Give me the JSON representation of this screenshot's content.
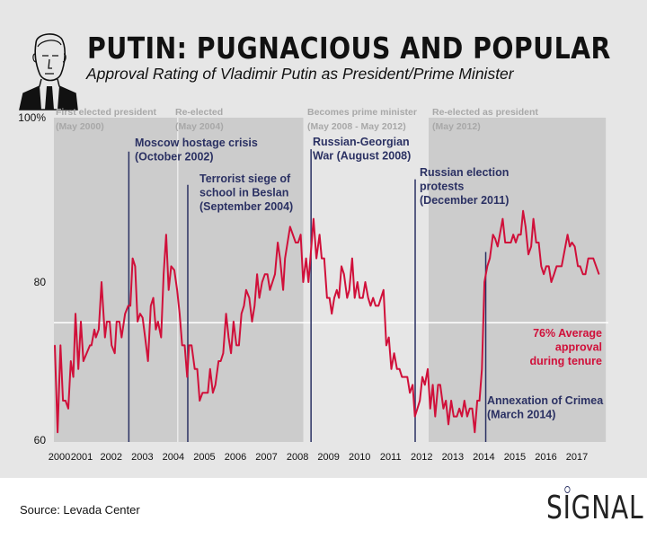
{
  "header": {
    "title": "PUTIN: PUGNACIOUS AND POPULAR",
    "subtitle": "Approval Rating of Vladimir Putin as President/Prime Minister",
    "portrait_icon": "putin-portrait-sketch"
  },
  "footer": {
    "source": "Source: Levada Center",
    "logo": "SIGNAL"
  },
  "colors": {
    "background": "#e6e6e6",
    "shaded_period": "#cccccc",
    "line": "#d0103a",
    "event": "#2b3163",
    "period_label": "#a8a8a8",
    "average_line": "#ffffff"
  },
  "chart_data": {
    "type": "line",
    "title": "PUTIN: PUGNACIOUS AND POPULAR",
    "subtitle": "Approval Rating of Vladimir Putin as President/Prime Minister",
    "xlabel": "",
    "ylabel": "",
    "xlim": [
      2000,
      2018
    ],
    "ylim": [
      60,
      100
    ],
    "yticks": [
      {
        "value": 100,
        "label": "100%"
      },
      {
        "value": 80,
        "label": "80"
      },
      {
        "value": 60,
        "label": "60"
      }
    ],
    "xticks": [
      "2000",
      "2001",
      "2002",
      "2003",
      "2004",
      "2005",
      "2006",
      "2007",
      "2008",
      "2009",
      "2010",
      "2011",
      "2012",
      "2013",
      "2014",
      "2015",
      "2016",
      "2017"
    ],
    "grid": false,
    "average": {
      "value": 76,
      "label_lines": [
        "76% Average",
        "approval",
        "during tenure"
      ]
    },
    "periods": [
      {
        "label": "First elected president",
        "date": "(May 2000)",
        "start": 2000.33,
        "end": 2008.35,
        "shaded": true
      },
      {
        "label": "Re-elected",
        "date": "(May 2004)",
        "start": 2004.35,
        "end": 2008.35,
        "shaded": true
      },
      {
        "label": "Becomes prime minister",
        "date": "(May 2008 - May 2012)",
        "start": 2008.35,
        "end": 2012.35,
        "shaded": false
      },
      {
        "label": "Re-elected as president",
        "date": "(May 2012)",
        "start": 2012.35,
        "end": 2018.0,
        "shaded": true
      }
    ],
    "events": [
      {
        "lines": [
          "Moscow hostage crisis",
          "(October 2002)"
        ],
        "x": 2002.79,
        "top_value": 96.5
      },
      {
        "lines": [
          "Terrorist siege of",
          "school in Beslan",
          "(September 2004)"
        ],
        "x": 2004.67,
        "top_value": 92.3
      },
      {
        "lines": [
          "Russian-Georgian",
          "War (August 2008)"
        ],
        "x": 2008.6,
        "top_value": 96.8
      },
      {
        "lines": [
          "Russian election",
          "protests",
          "(December 2011)"
        ],
        "x": 2011.92,
        "top_value": 93
      },
      {
        "lines": [
          "Annexation of Crimea",
          "(March 2014)"
        ],
        "x": 2014.17,
        "top_value": 83.8
      }
    ],
    "series": [
      {
        "points": [
          [
            2000.43,
            72
          ],
          [
            2000.52,
            61
          ],
          [
            2000.61,
            72
          ],
          [
            2000.69,
            65
          ],
          [
            2000.77,
            65
          ],
          [
            2000.86,
            64
          ],
          [
            2000.94,
            70
          ],
          [
            2001.02,
            68
          ],
          [
            2001.09,
            76
          ],
          [
            2001.18,
            69
          ],
          [
            2001.26,
            75
          ],
          [
            2001.34,
            70
          ],
          [
            2001.55,
            72
          ],
          [
            2001.6,
            72
          ],
          [
            2001.69,
            74
          ],
          [
            2001.74,
            73
          ],
          [
            2001.83,
            74
          ],
          [
            2001.92,
            80
          ],
          [
            2002.03,
            73
          ],
          [
            2002.09,
            75
          ],
          [
            2002.18,
            75
          ],
          [
            2002.24,
            72
          ],
          [
            2002.34,
            71
          ],
          [
            2002.4,
            75
          ],
          [
            2002.49,
            75
          ],
          [
            2002.56,
            73
          ],
          [
            2002.67,
            76
          ],
          [
            2002.77,
            77
          ],
          [
            2002.84,
            77
          ],
          [
            2002.91,
            83
          ],
          [
            2002.99,
            82
          ],
          [
            2003.07,
            75
          ],
          [
            2003.15,
            76
          ],
          [
            2003.23,
            75.5
          ],
          [
            2003.31,
            73
          ],
          [
            2003.4,
            70
          ],
          [
            2003.49,
            77
          ],
          [
            2003.57,
            78
          ],
          [
            2003.65,
            74
          ],
          [
            2003.72,
            75
          ],
          [
            2003.82,
            73
          ],
          [
            2003.9,
            81
          ],
          [
            2003.98,
            86
          ],
          [
            2004.06,
            79
          ],
          [
            2004.14,
            82
          ],
          [
            2004.24,
            81.5
          ],
          [
            2004.33,
            79
          ],
          [
            2004.41,
            76
          ],
          [
            2004.49,
            72
          ],
          [
            2004.57,
            72
          ],
          [
            2004.65,
            68
          ],
          [
            2004.71,
            72
          ],
          [
            2004.79,
            72
          ],
          [
            2004.89,
            69
          ],
          [
            2004.97,
            69
          ],
          [
            2005.05,
            65
          ],
          [
            2005.14,
            66
          ],
          [
            2005.24,
            66
          ],
          [
            2005.31,
            66
          ],
          [
            2005.38,
            69
          ],
          [
            2005.47,
            66
          ],
          [
            2005.55,
            67
          ],
          [
            2005.65,
            70
          ],
          [
            2005.72,
            70
          ],
          [
            2005.8,
            71
          ],
          [
            2005.89,
            76
          ],
          [
            2005.97,
            73
          ],
          [
            2006.05,
            71
          ],
          [
            2006.13,
            75
          ],
          [
            2006.22,
            72
          ],
          [
            2006.3,
            72
          ],
          [
            2006.38,
            76
          ],
          [
            2006.46,
            77
          ],
          [
            2006.53,
            79
          ],
          [
            2006.63,
            78
          ],
          [
            2006.72,
            75
          ],
          [
            2006.8,
            77
          ],
          [
            2006.88,
            81
          ],
          [
            2006.95,
            78
          ],
          [
            2007.04,
            80
          ],
          [
            2007.13,
            81
          ],
          [
            2007.21,
            81
          ],
          [
            2007.29,
            79
          ],
          [
            2007.37,
            80
          ],
          [
            2007.45,
            81
          ],
          [
            2007.54,
            85
          ],
          [
            2007.61,
            83
          ],
          [
            2007.71,
            79
          ],
          [
            2007.77,
            83
          ],
          [
            2007.85,
            85
          ],
          [
            2007.93,
            87
          ],
          [
            2008.02,
            86
          ],
          [
            2008.11,
            85
          ],
          [
            2008.19,
            85
          ],
          [
            2008.27,
            86
          ],
          [
            2008.35,
            80
          ],
          [
            2008.44,
            83
          ],
          [
            2008.52,
            80
          ],
          [
            2008.68,
            88
          ],
          [
            2008.77,
            83
          ],
          [
            2008.87,
            86
          ],
          [
            2008.94,
            83
          ],
          [
            2009.02,
            83
          ],
          [
            2009.11,
            78
          ],
          [
            2009.19,
            78
          ],
          [
            2009.26,
            76
          ],
          [
            2009.34,
            78
          ],
          [
            2009.42,
            79
          ],
          [
            2009.49,
            78
          ],
          [
            2009.57,
            82
          ],
          [
            2009.65,
            81
          ],
          [
            2009.75,
            78
          ],
          [
            2009.82,
            79
          ],
          [
            2009.91,
            83
          ],
          [
            2009.99,
            78
          ],
          [
            2010.08,
            80
          ],
          [
            2010.15,
            78
          ],
          [
            2010.25,
            78
          ],
          [
            2010.33,
            80
          ],
          [
            2010.42,
            78
          ],
          [
            2010.5,
            77
          ],
          [
            2010.58,
            78
          ],
          [
            2010.66,
            77
          ],
          [
            2010.75,
            77
          ],
          [
            2010.83,
            78
          ],
          [
            2010.91,
            79
          ],
          [
            2011.0,
            72
          ],
          [
            2011.08,
            73
          ],
          [
            2011.16,
            69
          ],
          [
            2011.25,
            71
          ],
          [
            2011.34,
            69
          ],
          [
            2011.42,
            69
          ],
          [
            2011.5,
            68
          ],
          [
            2011.6,
            68
          ],
          [
            2011.67,
            68
          ],
          [
            2011.75,
            66
          ],
          [
            2011.84,
            67
          ],
          [
            2011.91,
            63
          ],
          [
            2011.99,
            64
          ],
          [
            2012.07,
            65
          ],
          [
            2012.15,
            68
          ],
          [
            2012.23,
            67
          ],
          [
            2012.32,
            69
          ],
          [
            2012.4,
            64
          ],
          [
            2012.48,
            67
          ],
          [
            2012.56,
            63
          ],
          [
            2012.65,
            67
          ],
          [
            2012.72,
            67
          ],
          [
            2012.82,
            64
          ],
          [
            2012.9,
            65
          ],
          [
            2012.98,
            62
          ],
          [
            2013.07,
            65
          ],
          [
            2013.15,
            63
          ],
          [
            2013.25,
            63
          ],
          [
            2013.33,
            64
          ],
          [
            2013.41,
            63
          ],
          [
            2013.49,
            65
          ],
          [
            2013.58,
            63
          ],
          [
            2013.66,
            64
          ],
          [
            2013.74,
            64
          ],
          [
            2013.82,
            61
          ],
          [
            2013.9,
            65
          ],
          [
            2013.97,
            65
          ],
          [
            2014.05,
            69
          ],
          [
            2014.13,
            80
          ],
          [
            2014.22,
            82
          ],
          [
            2014.3,
            83
          ],
          [
            2014.4,
            86
          ],
          [
            2014.47,
            85.5
          ],
          [
            2014.55,
            84.5
          ],
          [
            2014.71,
            88
          ],
          [
            2014.79,
            85
          ],
          [
            2014.97,
            85
          ],
          [
            2015.05,
            86
          ],
          [
            2015.13,
            85
          ],
          [
            2015.21,
            86
          ],
          [
            2015.29,
            86
          ],
          [
            2015.36,
            89
          ],
          [
            2015.44,
            87
          ],
          [
            2015.53,
            83.5
          ],
          [
            2015.62,
            84.5
          ],
          [
            2015.69,
            88
          ],
          [
            2015.78,
            85
          ],
          [
            2015.86,
            85
          ],
          [
            2015.94,
            82
          ],
          [
            2016.02,
            81
          ],
          [
            2016.1,
            82
          ],
          [
            2016.18,
            82
          ],
          [
            2016.26,
            80
          ],
          [
            2016.35,
            81
          ],
          [
            2016.43,
            82
          ],
          [
            2016.59,
            82
          ],
          [
            2016.78,
            86
          ],
          [
            2016.85,
            84.5
          ],
          [
            2016.92,
            85
          ],
          [
            2017.01,
            84.5
          ],
          [
            2017.11,
            82
          ],
          [
            2017.18,
            82
          ],
          [
            2017.27,
            81
          ],
          [
            2017.35,
            81
          ],
          [
            2017.44,
            83
          ],
          [
            2017.6,
            83
          ],
          [
            2017.78,
            81
          ]
        ]
      }
    ]
  }
}
